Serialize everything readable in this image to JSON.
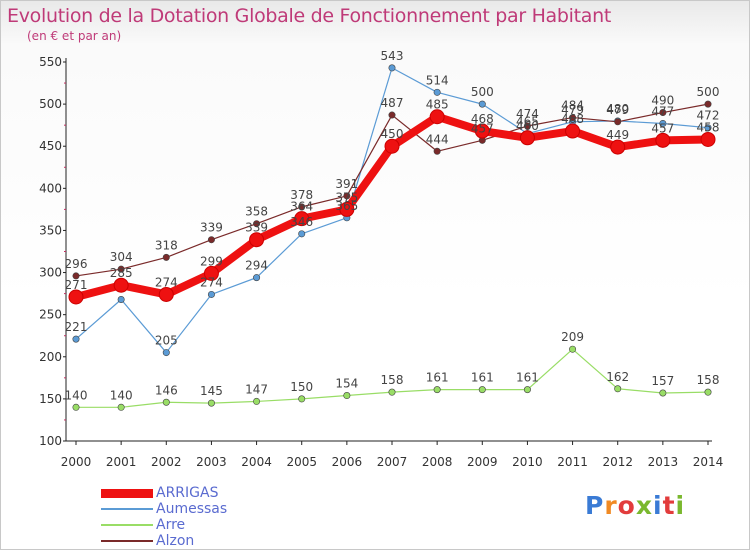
{
  "title": "Evolution de la Dotation Globale de Fonctionnement par Habitant",
  "subtitle": "(en € et par an)",
  "brand": {
    "text": "Proxiti",
    "colors": [
      "#3a7bd5",
      "#f08a24",
      "#e23c3c",
      "#7ab82e",
      "#3a7bd5",
      "#e23c3c",
      "#7ab82e"
    ]
  },
  "chart_data": {
    "type": "line",
    "x": [
      "2000",
      "2001",
      "2002",
      "2003",
      "2004",
      "2005",
      "2006",
      "2007",
      "2008",
      "2009",
      "2010",
      "2011",
      "2012",
      "2013",
      "2014"
    ],
    "ylim": [
      100,
      550
    ],
    "yticks": [
      "100",
      "150",
      "200",
      "250",
      "300",
      "350",
      "400",
      "450",
      "500",
      "550"
    ],
    "grid": false,
    "legend_position": "bottom-left",
    "series": [
      {
        "name": "ARRIGAS",
        "color": "#ee1111",
        "emphasis": true,
        "values": [
          271,
          285,
          274,
          299,
          339,
          364,
          375,
          450,
          485,
          468,
          460,
          468,
          449,
          457,
          458
        ],
        "labels": [
          "271",
          "285",
          "274",
          "299",
          "339",
          "364",
          "375",
          "450",
          "485",
          "468",
          "460",
          "468",
          "449",
          "457",
          "458"
        ]
      },
      {
        "name": "Aumessas",
        "color": "#5b9bd5",
        "values": [
          221,
          268,
          205,
          274,
          294,
          346,
          365,
          543,
          514,
          500,
          465,
          479,
          480,
          477,
          472
        ],
        "labels": [
          "221",
          "",
          "205",
          "274",
          "294",
          "346",
          "365",
          "543",
          "514",
          "500",
          "465",
          "479",
          "480",
          "477",
          "472"
        ]
      },
      {
        "name": "Arre",
        "color": "#99dd66",
        "values": [
          140,
          140,
          146,
          145,
          147,
          150,
          154,
          158,
          161,
          161,
          161,
          209,
          162,
          157,
          158
        ],
        "labels": [
          "140",
          "140",
          "146",
          "145",
          "147",
          "150",
          "154",
          "158",
          "161",
          "161",
          "161",
          "209",
          "162",
          "157",
          "158"
        ]
      },
      {
        "name": "Alzon",
        "color": "#7a2a2a",
        "values": [
          296,
          304,
          318,
          339,
          358,
          378,
          391,
          487,
          444,
          457,
          474,
          484,
          479,
          490,
          500
        ],
        "labels": [
          "296",
          "304",
          "318",
          "339",
          "358",
          "378",
          "391",
          "487",
          "444",
          "457",
          "474",
          "484",
          "479",
          "490",
          "500"
        ]
      }
    ]
  }
}
